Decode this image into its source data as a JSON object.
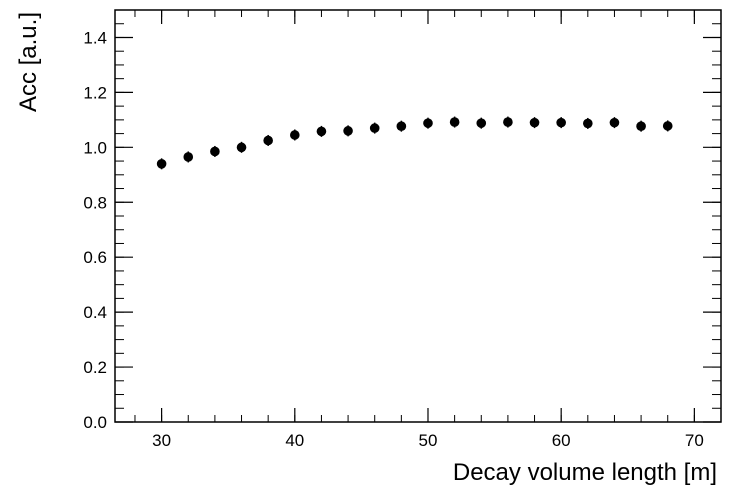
{
  "chart_data": {
    "type": "scatter",
    "title": "",
    "xlabel": "Decay volume length [m]",
    "ylabel": "Acc [a.u.]",
    "xlim": [
      26.5,
      72
    ],
    "ylim": [
      0,
      1.5
    ],
    "x_major_ticks": [
      30,
      40,
      50,
      60,
      70
    ],
    "x_tick_labels": [
      "30",
      "40",
      "50",
      "60",
      "70"
    ],
    "x_minor_step": 2,
    "y_major_ticks": [
      0,
      0.2,
      0.4,
      0.6,
      0.8,
      1.0,
      1.2,
      1.4
    ],
    "y_tick_labels": [
      "0.0",
      "0.2",
      "0.4",
      "0.6",
      "0.8",
      "1.0",
      "1.2",
      "1.4"
    ],
    "y_minor_step": 0.05,
    "grid": false,
    "legend": "none",
    "marker_color": "#000000",
    "series": [
      {
        "x": [
          30,
          32,
          34,
          36,
          38,
          40,
          42,
          44,
          46,
          48,
          50,
          52,
          54,
          56,
          58,
          60,
          62,
          64,
          66,
          68
        ],
        "y": [
          0.94,
          0.965,
          0.985,
          1.0,
          1.025,
          1.045,
          1.058,
          1.06,
          1.07,
          1.077,
          1.088,
          1.092,
          1.088,
          1.092,
          1.09,
          1.09,
          1.087,
          1.09,
          1.077,
          1.078
        ],
        "yerr": [
          0.02,
          0.02,
          0.02,
          0.02,
          0.02,
          0.02,
          0.02,
          0.02,
          0.02,
          0.02,
          0.02,
          0.02,
          0.02,
          0.02,
          0.02,
          0.02,
          0.02,
          0.02,
          0.02,
          0.02
        ]
      }
    ]
  }
}
